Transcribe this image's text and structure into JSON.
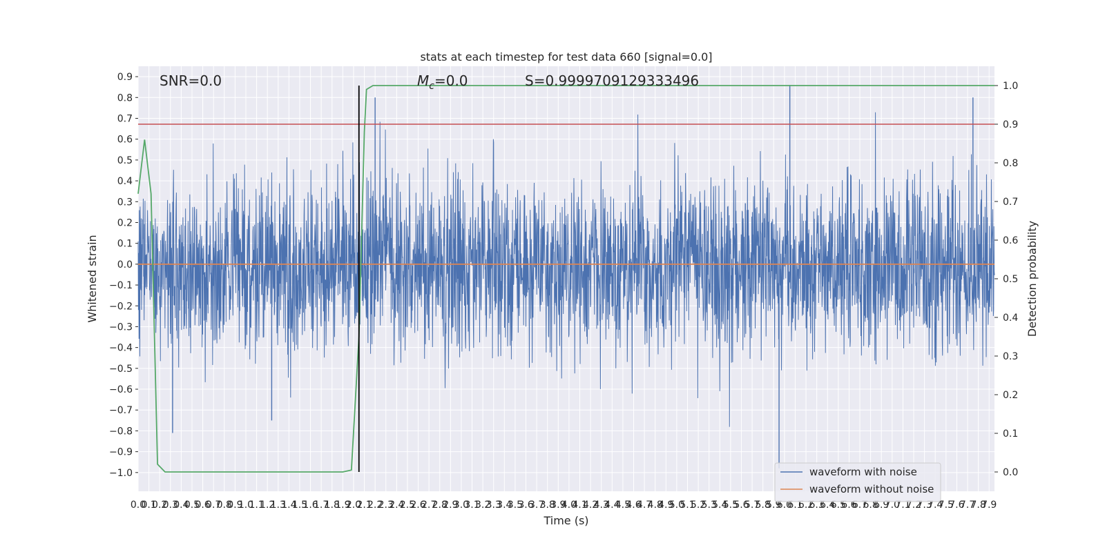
{
  "chart_data": {
    "type": "line",
    "title": "stats at each timestep for test data 660 [signal=0.0]",
    "xlabel": "Time (s)",
    "ylabel": "Whitened strain",
    "y2label": "Detection probability",
    "xlim": [
      0.0,
      7.95
    ],
    "ylim": [
      -1.09,
      0.95
    ],
    "y2lim": [
      -0.05,
      1.05
    ],
    "x_ticks": [
      "0.0",
      "0.1",
      "0.2",
      "0.3",
      "0.4",
      "0.5",
      "0.6",
      "0.7",
      "0.8",
      "0.9",
      "1.0",
      "1.1",
      "1.2",
      "1.3",
      "1.4",
      "1.5",
      "1.6",
      "1.7",
      "1.8",
      "1.9",
      "2.0",
      "2.1",
      "2.2",
      "2.3",
      "2.4",
      "2.5",
      "2.6",
      "2.7",
      "2.8",
      "2.9",
      "3.0",
      "3.1",
      "3.2",
      "3.3",
      "3.4",
      "3.5",
      "3.6",
      "3.7",
      "3.8",
      "3.9",
      "4.0",
      "4.1",
      "4.2",
      "4.3",
      "4.4",
      "4.5",
      "4.6",
      "4.7",
      "4.8",
      "4.9",
      "5.0",
      "5.1",
      "5.2",
      "5.3",
      "5.4",
      "5.5",
      "5.6",
      "5.7",
      "5.8",
      "5.9",
      "6.0",
      "6.1",
      "6.2",
      "6.3",
      "6.4",
      "6.5",
      "6.6",
      "6.7",
      "6.8",
      "6.9",
      "7.0",
      "7.1",
      "7.2",
      "7.3",
      "7.4",
      "7.5",
      "7.6",
      "7.7",
      "7.8",
      "7.9"
    ],
    "y_ticks": [
      "0.9",
      "0.8",
      "0.7",
      "0.6",
      "0.5",
      "0.4",
      "0.3",
      "0.2",
      "0.1",
      "0.0",
      "−0.1",
      "−0.2",
      "−0.3",
      "−0.4",
      "−0.5",
      "−0.6",
      "−0.7",
      "−0.8",
      "−0.9",
      "−1.0"
    ],
    "y2_ticks": [
      "1.0",
      "0.9",
      "0.8",
      "0.7",
      "0.6",
      "0.5",
      "0.4",
      "0.3",
      "0.2",
      "0.1",
      "0.0"
    ],
    "annotations": {
      "snr": "SNR=0.0",
      "mc_symbol": "M",
      "mc_subscript": "c",
      "mc_value": "=0.0",
      "s": "S=0.9999709129333496"
    },
    "series": [
      {
        "name": "waveform with noise",
        "color": "#4c72b0",
        "axis": "left",
        "noise": {
          "typical_amplitude": 0.3,
          "min": -1.0,
          "max": 0.86,
          "spikes": [
            [
              0.32,
              -0.81
            ],
            [
              1.24,
              -0.75
            ],
            [
              2.2,
              0.8
            ],
            [
              5.95,
              -0.98
            ],
            [
              6.05,
              0.86
            ],
            [
              7.75,
              0.8
            ]
          ]
        }
      },
      {
        "name": "waveform without noise",
        "color": "#dd8452",
        "axis": "left",
        "values": [
          [
            0.0,
            0.0
          ],
          [
            7.95,
            0.0
          ]
        ]
      },
      {
        "name": "",
        "color": "#55a868",
        "axis": "right",
        "values": [
          [
            0.0,
            0.72
          ],
          [
            0.06,
            0.86
          ],
          [
            0.12,
            0.72
          ],
          [
            0.18,
            0.02
          ],
          [
            0.25,
            0.0
          ],
          [
            0.6,
            0.0
          ],
          [
            1.2,
            0.0
          ],
          [
            1.9,
            0.0
          ],
          [
            1.98,
            0.005
          ],
          [
            2.05,
            0.35
          ],
          [
            2.1,
            0.88
          ],
          [
            2.12,
            0.99
          ],
          [
            2.18,
            1.0
          ],
          [
            3.5,
            1.0
          ],
          [
            5.0,
            1.0
          ],
          [
            6.5,
            1.0
          ],
          [
            7.95,
            1.0
          ]
        ]
      }
    ],
    "threshold_line": {
      "color": "#c44e52",
      "y2": 0.9
    },
    "vertical_marker": {
      "color": "#000000",
      "x": 2.05,
      "y2_range": [
        0.0,
        1.0
      ]
    },
    "legend": {
      "placement": "lower right",
      "entries": [
        "waveform with noise",
        "waveform without noise"
      ]
    },
    "grid": true,
    "plot_background": "#eaeaf2"
  }
}
